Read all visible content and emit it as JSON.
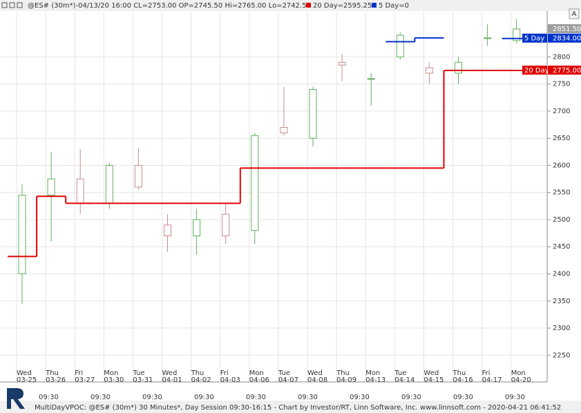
{
  "chart_data": {
    "type": "candlestick",
    "title": "@ES# (30m*)-04/13/20 16:00 CL=2753.00 OP=2745.50 Hi=2765.00 Lo=2742.50",
    "footer": "MultiDayVPOC: @ES# (30m*) 30 Minutes*, Day Session 09:30-16:15 - Chart by Investor/RT, Linn Software, Inc. www.linnsoft.com - 2020-04-21 06:41:52",
    "button": "A",
    "weekdays": [
      "Wed",
      "Thu",
      "Fri",
      "Mon",
      "Tue",
      "Wed",
      "Thu",
      "Fri",
      "Mon",
      "Tue",
      "Wed",
      "Thu",
      "Mon",
      "Tue",
      "Wed",
      "Thu",
      "Fri",
      "Mon"
    ],
    "categories": [
      "03-25",
      "03-26",
      "03-27",
      "03-30",
      "03-31",
      "04-01",
      "04-02",
      "04-03",
      "04-06",
      "04-07",
      "04-08",
      "04-09",
      "04-13",
      "04-14",
      "04-15",
      "04-16",
      "04-17",
      "04-20"
    ],
    "time_labels": [
      "09:30",
      "09:30",
      "09:30",
      "09:30",
      "09:30",
      "09:30",
      "09:30",
      "09:30",
      "09:30",
      "09:30"
    ],
    "open": [
      2400,
      2545,
      2575,
      2530,
      2600,
      2490,
      2470,
      2510,
      2480,
      2670,
      2650,
      2790,
      2760,
      2800,
      2780,
      2770,
      2835,
      2830
    ],
    "high": [
      2565,
      2625,
      2630,
      2605,
      2632,
      2510,
      2520,
      2530,
      2660,
      2745,
      2745,
      2805,
      2770,
      2845,
      2790,
      2800,
      2860,
      2870
    ],
    "low": [
      2345,
      2460,
      2510,
      2520,
      2555,
      2440,
      2435,
      2455,
      2455,
      2655,
      2635,
      2755,
      2710,
      2795,
      2750,
      2750,
      2820,
      2825
    ],
    "close": [
      2545,
      2575,
      2530,
      2600,
      2560,
      2470,
      2500,
      2470,
      2655,
      2660,
      2740,
      2785,
      2760,
      2840,
      2770,
      2790,
      2835,
      2851.5
    ],
    "up_color": "#5fae5f",
    "down_color": "#c98a8a",
    "last_price": {
      "value": 2851.5,
      "label": "2851.50"
    },
    "series": [
      {
        "name": "20 Day",
        "legend": "20 Day=2595.25",
        "color": "#e00000",
        "values": [
          2432,
          2543,
          2530,
          2530,
          2530,
          2530,
          2530,
          2530,
          2595,
          2595,
          2595,
          2595,
          2595,
          2595,
          2595,
          2775,
          2775,
          2775
        ],
        "last_label": "2775.00"
      },
      {
        "name": "5 Day",
        "legend": "5 Day=0",
        "color": "#0033cc",
        "values": [
          null,
          null,
          null,
          null,
          null,
          null,
          null,
          null,
          null,
          null,
          null,
          null,
          null,
          2828,
          2835,
          null,
          null,
          2834
        ],
        "last_label": "2834.00"
      }
    ],
    "ylim": [
      2202,
      2882
    ],
    "yticks": [
      2250,
      2300,
      2350,
      2400,
      2450,
      2500,
      2550,
      2600,
      2650,
      2700,
      2750,
      2800
    ],
    "grid": true
  }
}
